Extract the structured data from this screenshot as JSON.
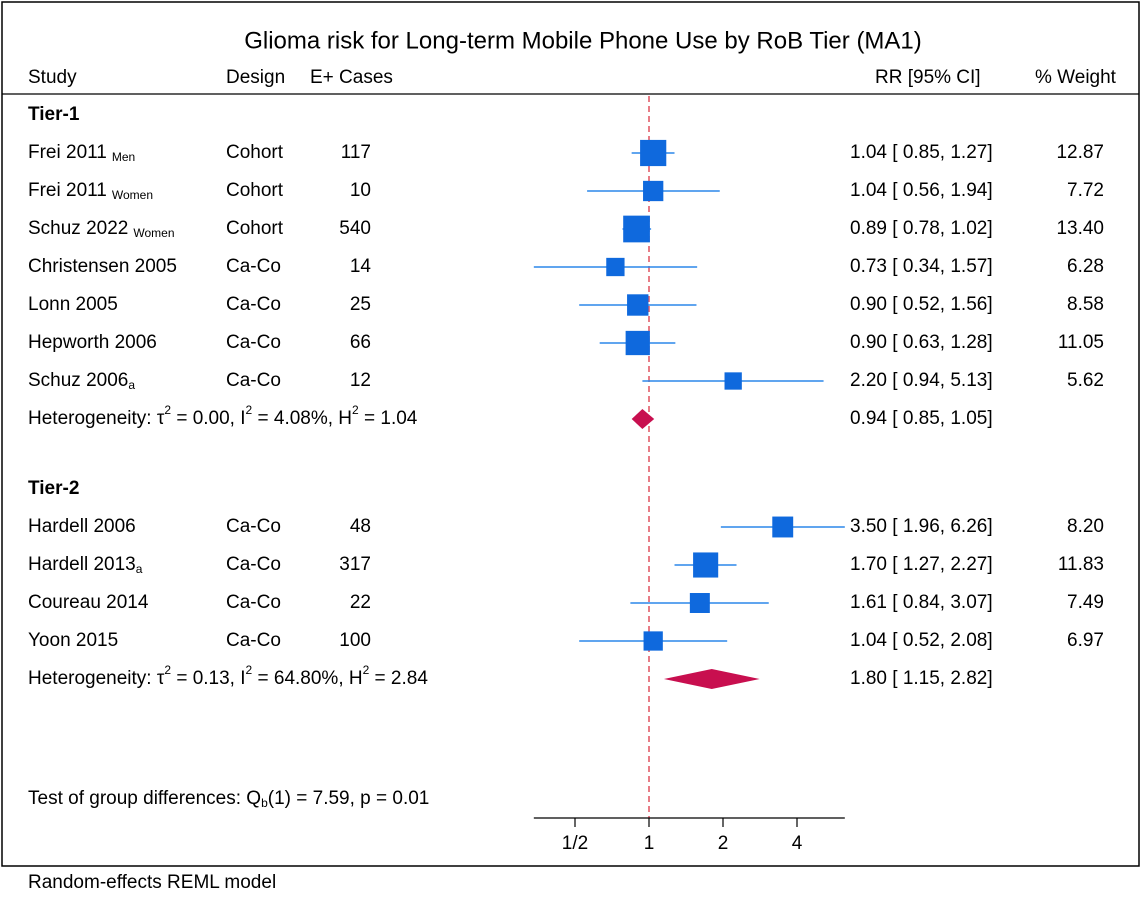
{
  "chart_data": {
    "type": "forest",
    "title": "Glioma risk for Long-term Mobile Phone Use by RoB Tier (MA1)",
    "columns": [
      "Study",
      "Design",
      "E+ Cases",
      "RR [95% CI]",
      "% Weight"
    ],
    "xscale": "log",
    "xlim": [
      0.34,
      6.26
    ],
    "xticks": [
      {
        "value": 0.5,
        "label": "1/2"
      },
      1,
      2,
      4
    ],
    "reference_line": 1,
    "square_color": "#0f69dd",
    "line_color": "#2b87ea",
    "diamond_color": "#c80f4f",
    "reference_color": "#e0505f",
    "groups": [
      {
        "name": "Tier-1",
        "studies": [
          {
            "name": "Frei 2011",
            "sub": "Men",
            "design": "Cohort",
            "cases": 117,
            "rr": 1.04,
            "lo": 0.85,
            "hi": 1.27,
            "ci_label": "1.04 [ 0.85,  1.27]",
            "weight": 12.87,
            "weight_label": "12.87"
          },
          {
            "name": "Frei 2011",
            "sub": "Women",
            "design": "Cohort",
            "cases": 10,
            "rr": 1.04,
            "lo": 0.56,
            "hi": 1.94,
            "ci_label": "1.04 [ 0.56,  1.94]",
            "weight": 7.72,
            "weight_label": "7.72"
          },
          {
            "name": "Schuz 2022",
            "sub": "Women",
            "design": "Cohort",
            "cases": 540,
            "rr": 0.89,
            "lo": 0.78,
            "hi": 1.02,
            "ci_label": "0.89 [ 0.78,  1.02]",
            "weight": 13.4,
            "weight_label": "13.40"
          },
          {
            "name": "Christensen 2005",
            "design": "Ca-Co",
            "cases": 14,
            "rr": 0.73,
            "lo": 0.34,
            "hi": 1.57,
            "ci_label": "0.73 [ 0.34,  1.57]",
            "weight": 6.28,
            "weight_label": "6.28"
          },
          {
            "name": "Lonn 2005",
            "design": "Ca-Co",
            "cases": 25,
            "rr": 0.9,
            "lo": 0.52,
            "hi": 1.56,
            "ci_label": "0.90 [ 0.52,  1.56]",
            "weight": 8.58,
            "weight_label": "8.58"
          },
          {
            "name": "Hepworth 2006",
            "design": "Ca-Co",
            "cases": 66,
            "rr": 0.9,
            "lo": 0.63,
            "hi": 1.28,
            "ci_label": "0.90 [ 0.63,  1.28]",
            "weight": 11.05,
            "weight_label": "11.05"
          },
          {
            "name": "Schuz 2006",
            "sub": "a",
            "design": "Ca-Co",
            "cases": 12,
            "rr": 2.2,
            "lo": 0.94,
            "hi": 5.13,
            "ci_label": "2.20 [ 0.94,  5.13]",
            "weight": 5.62,
            "weight_label": "5.62"
          }
        ],
        "summary": {
          "text": [
            "Heterogeneity: τ",
            "2",
            " = 0.00, I",
            "2",
            " = 4.08%, H",
            "2",
            " = 1.04"
          ],
          "rr": 0.94,
          "lo": 0.85,
          "hi": 1.05,
          "ci_label": "0.94 [ 0.85,  1.05]"
        }
      },
      {
        "name": "Tier-2",
        "studies": [
          {
            "name": "Hardell 2006",
            "design": "Ca-Co",
            "cases": 48,
            "rr": 3.5,
            "lo": 1.96,
            "hi": 6.26,
            "ci_label": "3.50 [ 1.96,  6.26]",
            "weight": 8.2,
            "weight_label": "8.20"
          },
          {
            "name": "Hardell 2013",
            "sub": "a",
            "design": "Ca-Co",
            "cases": 317,
            "rr": 1.7,
            "lo": 1.27,
            "hi": 2.27,
            "ci_label": "1.70 [ 1.27,  2.27]",
            "weight": 11.83,
            "weight_label": "11.83"
          },
          {
            "name": "Coureau 2014",
            "design": "Ca-Co",
            "cases": 22,
            "rr": 1.61,
            "lo": 0.84,
            "hi": 3.07,
            "ci_label": "1.61 [ 0.84,  3.07]",
            "weight": 7.49,
            "weight_label": "7.49"
          },
          {
            "name": "Yoon 2015",
            "design": "Ca-Co",
            "cases": 100,
            "rr": 1.04,
            "lo": 0.52,
            "hi": 2.08,
            "ci_label": "1.04 [ 0.52,  2.08]",
            "weight": 6.97,
            "weight_label": "6.97"
          }
        ],
        "summary": {
          "text": [
            "Heterogeneity: τ",
            "2",
            " = 0.13, I",
            "2",
            " = 64.80%, H",
            "2",
            " = 2.84"
          ],
          "rr": 1.8,
          "lo": 1.15,
          "hi": 2.82,
          "ci_label": "1.80 [ 1.15,  2.82]"
        }
      }
    ],
    "group_test": [
      "Test of group differences: Q",
      "b",
      "(1) = 7.59, p = 0.01"
    ],
    "note": "Random-effects REML model"
  }
}
